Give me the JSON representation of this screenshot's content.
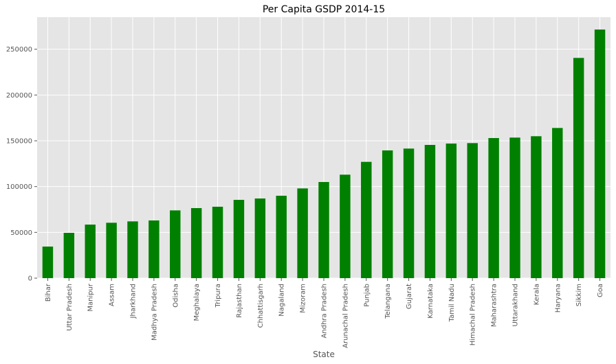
{
  "chart_data": {
    "type": "bar",
    "title": "Per Capita GSDP 2014-15",
    "xlabel": "State",
    "ylabel": "",
    "ylim": [
      0,
      285000
    ],
    "yticks": [
      0,
      50000,
      100000,
      150000,
      200000,
      250000
    ],
    "grid": true,
    "legend": "none",
    "bar_color": "#008000",
    "background_color": "#E5E5E5",
    "categories": [
      "Bihar",
      "Uttar Pradesh",
      "Manipur",
      "Assam",
      "Jharkhand",
      "Madhya Pradesh",
      "Odisha",
      "Meghalaya",
      "Tripura",
      "Rajasthan",
      "Chhattisgarh",
      "Nagaland",
      "Mizoram",
      "Andhra Pradesh",
      "Arunachal Pradesh",
      "Punjab",
      "Telangana",
      "Gujarat",
      "Karnataka",
      "Tamil Nadu",
      "Himachal Pradesh",
      "Maharashtra",
      "Uttarakhand",
      "Kerala",
      "Haryana",
      "Sikkim",
      "Goa"
    ],
    "values": [
      34500,
      49500,
      58500,
      60500,
      62000,
      63000,
      74000,
      76500,
      78000,
      85500,
      87000,
      90000,
      98000,
      105000,
      113000,
      127000,
      139500,
      141500,
      145500,
      147000,
      147500,
      153000,
      153500,
      155000,
      164000,
      240500,
      271500
    ]
  }
}
